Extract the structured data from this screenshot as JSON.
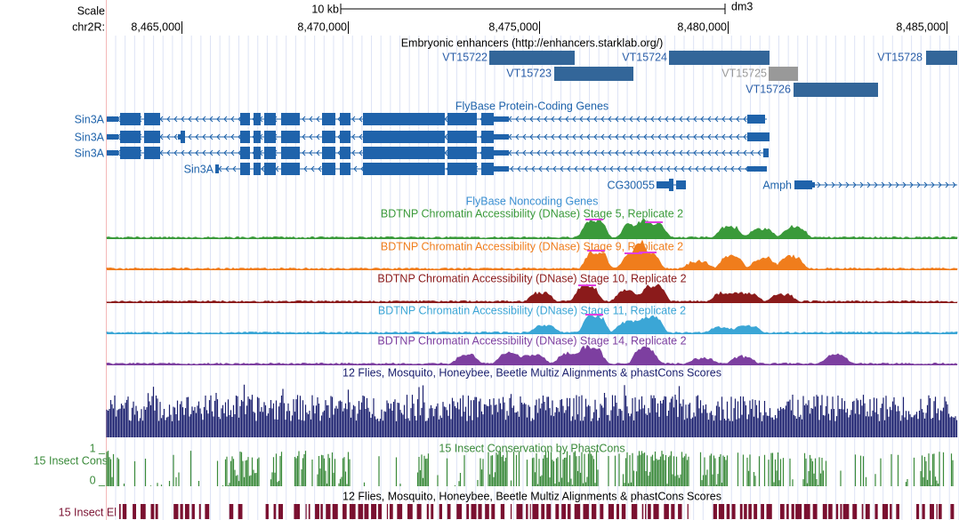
{
  "ruler": {
    "scale": "Scale",
    "scale_bar": "10 kb",
    "assembly": "dm3",
    "chrom": "chr2R:",
    "positions": [
      "8,465,000",
      "8,470,000",
      "8,475,000",
      "8,480,000",
      "8,485,000"
    ]
  },
  "enhancers": {
    "title": "Embryonic enhancers (http://enhancers.starklab.org/)",
    "features": [
      "VT15722",
      "VT15723",
      "VT15724",
      "VT15725",
      "VT15726",
      "VT15728"
    ]
  },
  "genes": {
    "title": "FlyBase Protein-Coding Genes",
    "labels": [
      "Sin3A",
      "Sin3A",
      "Sin3A",
      "Sin3A",
      "CG30055",
      "Amph"
    ]
  },
  "noncoding": {
    "title": "FlyBase Noncoding Genes"
  },
  "dnase": {
    "titles": [
      "BDTNP Chromatin Accessibility (DNase) Stage 5, Replicate 2",
      "BDTNP Chromatin Accessibility (DNase) Stage 9, Replicate 2",
      "BDTNP Chromatin Accessibility (DNase) Stage 10, Replicate 2",
      "BDTNP Chromatin Accessibility (DNase) Stage 11, Replicate 2",
      "BDTNP Chromatin Accessibility (DNase) Stage 14, Replicate 2"
    ]
  },
  "multiz": {
    "title": "12 Flies, Mosquito, Honeybee, Beetle Multiz Alignments & phastCons Scores"
  },
  "phastcons": {
    "title": "15 Insect Conservation by PhastCons",
    "label": "15 Insect Cons",
    "max": "1 _",
    "min": "0 _"
  },
  "elements": {
    "title": "12 Flies, Mosquito, Honeybee, Beetle Multiz Alignments & phastCons Scores",
    "label": "15 Insect El"
  }
}
